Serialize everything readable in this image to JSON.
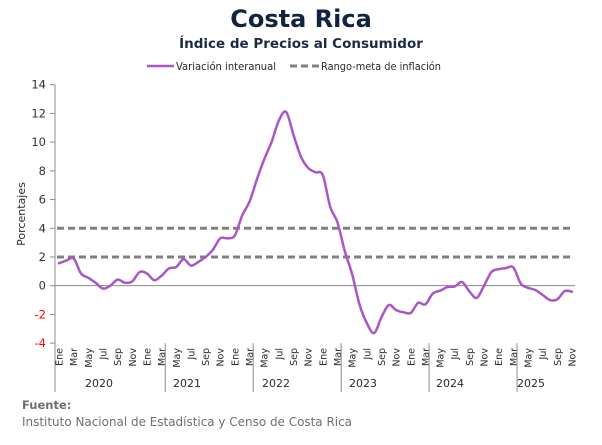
{
  "footer": {
    "source_label": "Fuente:",
    "source_text": "Instituto Nacional de Estadística y Censo de Costa Rica"
  },
  "chart_data": {
    "type": "line",
    "title": "Costa Rica",
    "subtitle": "Índice de Precios al Consumidor",
    "xlabel": "",
    "ylabel": "Porcentajes",
    "ylim": [
      -4,
      14
    ],
    "yticks": [
      -4,
      -2,
      0,
      2,
      4,
      6,
      8,
      10,
      12,
      14
    ],
    "negative_tick_color": "#ff0000",
    "grid": false,
    "legend_position": "top",
    "legend": [
      "Variación interanual",
      "Rango-meta de inflación"
    ],
    "x": [
      "Ene 2020",
      "Feb 2020",
      "Mar 2020",
      "Abr 2020",
      "May 2020",
      "Jun 2020",
      "Jul 2020",
      "Ago 2020",
      "Sep 2020",
      "Oct 2020",
      "Nov 2020",
      "Dic 2020",
      "Ene 2021",
      "Feb 2021",
      "Mar 2021",
      "Abr 2021",
      "May 2021",
      "Jun 2021",
      "Jul 2021",
      "Ago 2021",
      "Sep 2021",
      "Oct 2021",
      "Nov 2021",
      "Dic 2021",
      "Ene 2022",
      "Feb 2022",
      "Mar 2022",
      "Abr 2022",
      "May 2022",
      "Jun 2022",
      "Jul 2022",
      "Ago 2022",
      "Sep 2022",
      "Oct 2022",
      "Nov 2022",
      "Dic 2022",
      "Ene 2023",
      "Feb 2023",
      "Mar 2023",
      "Abr 2023",
      "May 2023",
      "Jun 2023",
      "Jul 2023",
      "Ago 2023",
      "Sep 2023",
      "Oct 2023",
      "Nov 2023",
      "Dic 2023",
      "Ene 2024",
      "Feb 2024",
      "Mar 2024",
      "Abr 2024",
      "May 2024",
      "Jun 2024",
      "Jul 2024",
      "Ago 2024",
      "Sep 2024",
      "Oct 2024",
      "Nov 2024",
      "Dic 2024",
      "Ene 2025",
      "Feb 2025",
      "Mar 2025",
      "Abr 2025",
      "May 2025",
      "Jun 2025",
      "Jul 2025",
      "Ago 2025",
      "Sep 2025",
      "Oct 2025",
      "Nov 2025"
    ],
    "x_tick_labels": [
      "Ene",
      "Mar",
      "May",
      "Jul",
      "Sep",
      "Nov",
      "Ene",
      "Mar",
      "May",
      "Jul",
      "Sep",
      "Nov",
      "Ene",
      "Mar",
      "May",
      "Jul",
      "Sep",
      "Nov",
      "Ene",
      "Mar",
      "May",
      "Jul",
      "Sep",
      "Nov",
      "Ene",
      "Mar",
      "May",
      "Jul",
      "Sep",
      "Nov",
      "Ene",
      "Mar",
      "May",
      "Jul",
      "Sep",
      "Nov"
    ],
    "x_groups": [
      "2020",
      "2021",
      "2022",
      "2023",
      "2024",
      "2025"
    ],
    "series": [
      {
        "name": "Variación interanual",
        "color": "#a957c6",
        "values": [
          1.56,
          1.75,
          1.9,
          0.85,
          0.55,
          0.2,
          -0.2,
          0.0,
          0.42,
          0.2,
          0.3,
          0.95,
          0.85,
          0.38,
          0.7,
          1.2,
          1.3,
          1.85,
          1.4,
          1.65,
          2.0,
          2.5,
          3.3,
          3.3,
          3.5,
          4.9,
          5.85,
          7.4,
          8.8,
          10.0,
          11.5,
          12.1,
          10.5,
          9.0,
          8.2,
          7.9,
          7.7,
          5.5,
          4.4,
          2.4,
          0.8,
          -1.3,
          -2.6,
          -3.3,
          -2.2,
          -1.35,
          -1.7,
          -1.85,
          -1.9,
          -1.2,
          -1.3,
          -0.55,
          -0.35,
          -0.1,
          -0.05,
          0.25,
          -0.4,
          -0.85,
          0.0,
          0.95,
          1.15,
          1.22,
          1.27,
          0.15,
          -0.15,
          -0.3,
          -0.65,
          -1.0,
          -0.95,
          -0.38,
          -0.42
        ]
      }
    ],
    "reference_lines": [
      {
        "name": "Rango-meta de inflación",
        "values": [
          2,
          4
        ],
        "color": "#808080",
        "style": "dashed"
      }
    ],
    "zero_line_color": "#8c8c8c"
  }
}
